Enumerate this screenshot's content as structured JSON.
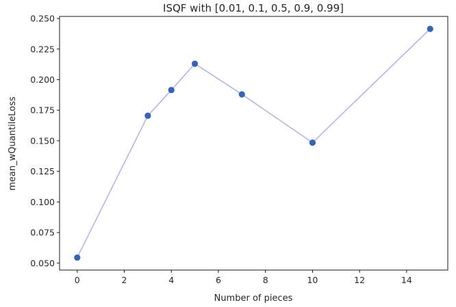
{
  "chart_data": {
    "type": "line",
    "title": "ISQF with [0.01, 0.1, 0.5, 0.9, 0.99]",
    "xlabel": "Number of pieces",
    "ylabel": "mean_wQuantileLoss",
    "x": [
      0,
      3,
      4,
      5,
      7,
      10,
      15
    ],
    "series": [
      {
        "values": [
          0.0545,
          0.1705,
          0.1915,
          0.213,
          0.188,
          0.1485,
          0.2415
        ]
      }
    ],
    "xlim": [
      -0.75,
      15.75
    ],
    "ylim": [
      0.0443,
      0.2517
    ],
    "xticks": [
      0,
      2,
      4,
      6,
      8,
      10,
      12,
      14
    ],
    "xtick_labels": [
      "0",
      "2",
      "4",
      "6",
      "8",
      "10",
      "12",
      "14"
    ],
    "yticks": [
      0.05,
      0.075,
      0.1,
      0.125,
      0.15,
      0.175,
      0.2,
      0.225,
      0.25
    ],
    "ytick_labels": [
      "0.050",
      "0.075",
      "0.100",
      "0.125",
      "0.150",
      "0.175",
      "0.200",
      "0.225",
      "0.250"
    ],
    "grid": false,
    "line_color": "#b3b3f2",
    "marker_color": "#3465b3"
  }
}
